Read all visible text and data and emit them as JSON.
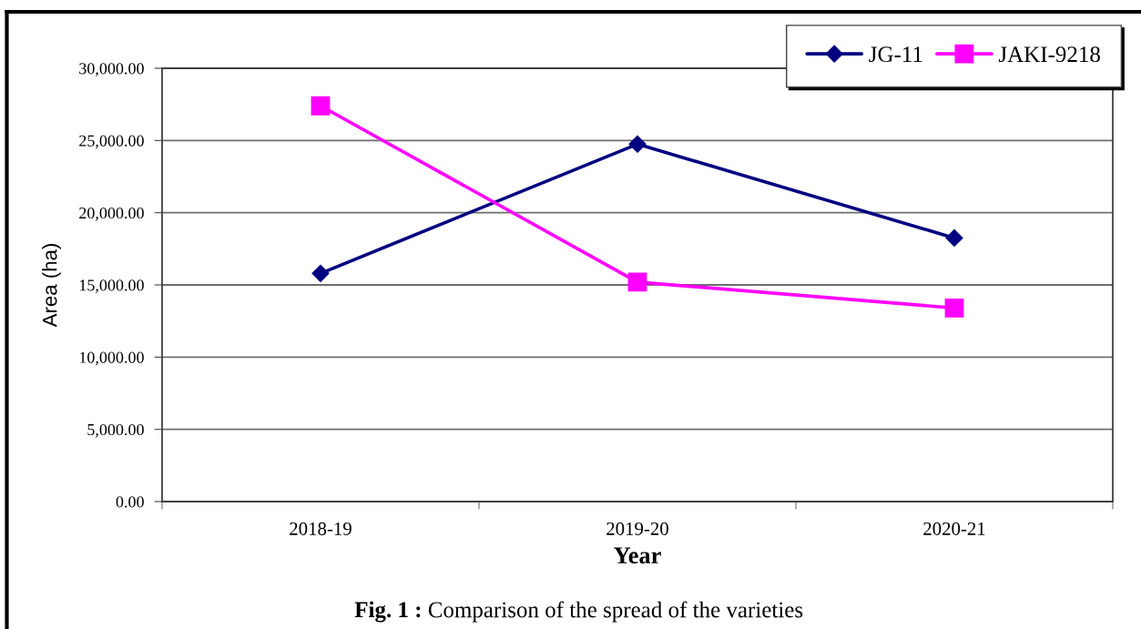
{
  "chart_data": {
    "type": "line",
    "xlabel": "Year",
    "ylabel": "Area (ha)",
    "categories": [
      "2018-19",
      "2019-20",
      "2020-21"
    ],
    "series": [
      {
        "name": "JG-11",
        "color": "#000080",
        "marker": "diamond",
        "values": [
          15800,
          24750,
          18250
        ]
      },
      {
        "name": "JAKI-9218",
        "color": "#ff00ff",
        "marker": "square",
        "values": [
          27400,
          15200,
          13400
        ]
      }
    ],
    "ylim": [
      0,
      30000
    ],
    "yticks": [
      {
        "value": 0,
        "label": "0.00"
      },
      {
        "value": 5000,
        "label": "5,000.00"
      },
      {
        "value": 10000,
        "label": "10,000.00"
      },
      {
        "value": 15000,
        "label": "15,000.00"
      },
      {
        "value": 20000,
        "label": "20,000.00"
      },
      {
        "value": 25000,
        "label": "25,000.00"
      },
      {
        "value": 30000,
        "label": "30,000.00"
      }
    ],
    "grid": "y",
    "legend": "top right",
    "line_style": "solid",
    "annotations": [
      "Fig. 1 : Comparison of the spread of the varieties"
    ]
  }
}
